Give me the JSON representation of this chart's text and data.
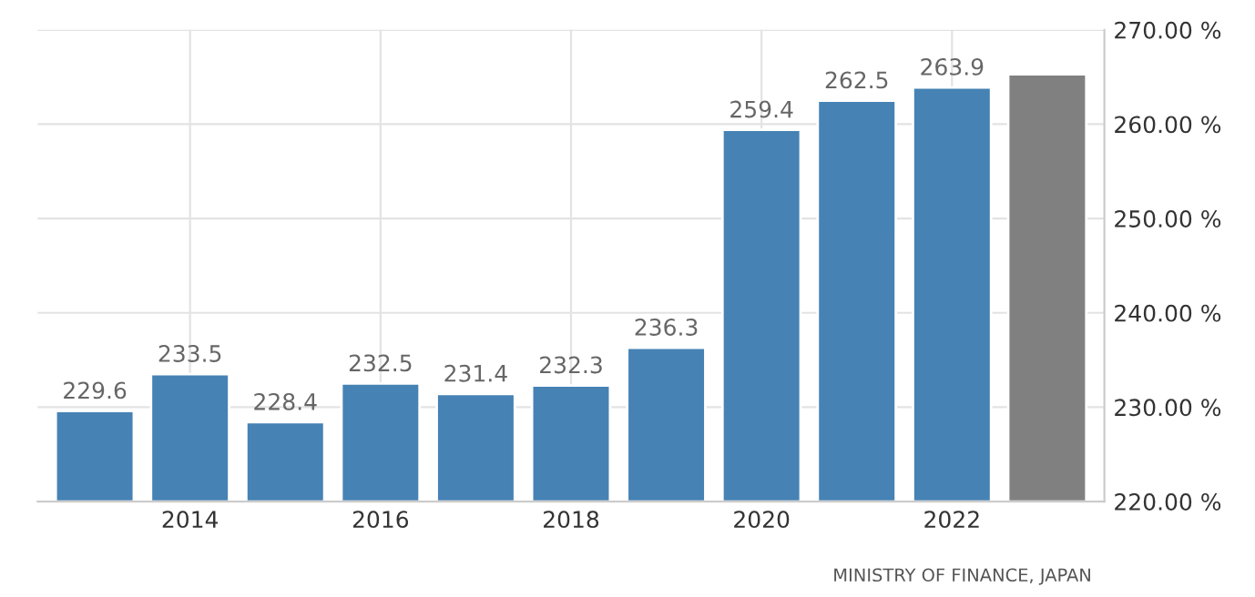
{
  "chart_data": {
    "type": "bar",
    "categories": [
      null,
      "2014",
      null,
      "2016",
      null,
      "2018",
      null,
      "2020",
      null,
      "2022",
      null
    ],
    "values": [
      229.6,
      233.5,
      228.4,
      232.5,
      231.4,
      232.3,
      236.3,
      259.4,
      262.5,
      263.9,
      265.3
    ],
    "value_labels": [
      "229.6",
      "233.5",
      "228.4",
      "232.5",
      "231.4",
      "232.3",
      "236.3",
      "259.4",
      "262.5",
      "263.9",
      null
    ],
    "colors": [
      "#4682b4",
      "#4682b4",
      "#4682b4",
      "#4682b4",
      "#4682b4",
      "#4682b4",
      "#4682b4",
      "#4682b4",
      "#4682b4",
      "#4682b4",
      "#808080"
    ],
    "ylim": [
      220,
      270
    ],
    "yticks": [
      {
        "value": 220,
        "label": "220.00 %"
      },
      {
        "value": 230,
        "label": "230.00 %"
      },
      {
        "value": 240,
        "label": "240.00 %"
      },
      {
        "value": 250,
        "label": "250.00 %"
      },
      {
        "value": 260,
        "label": "260.00 %"
      },
      {
        "value": 270,
        "label": "270.00 %"
      }
    ],
    "grid": true,
    "annotations": [
      "MINISTRY OF FINANCE, JAPAN"
    ]
  }
}
